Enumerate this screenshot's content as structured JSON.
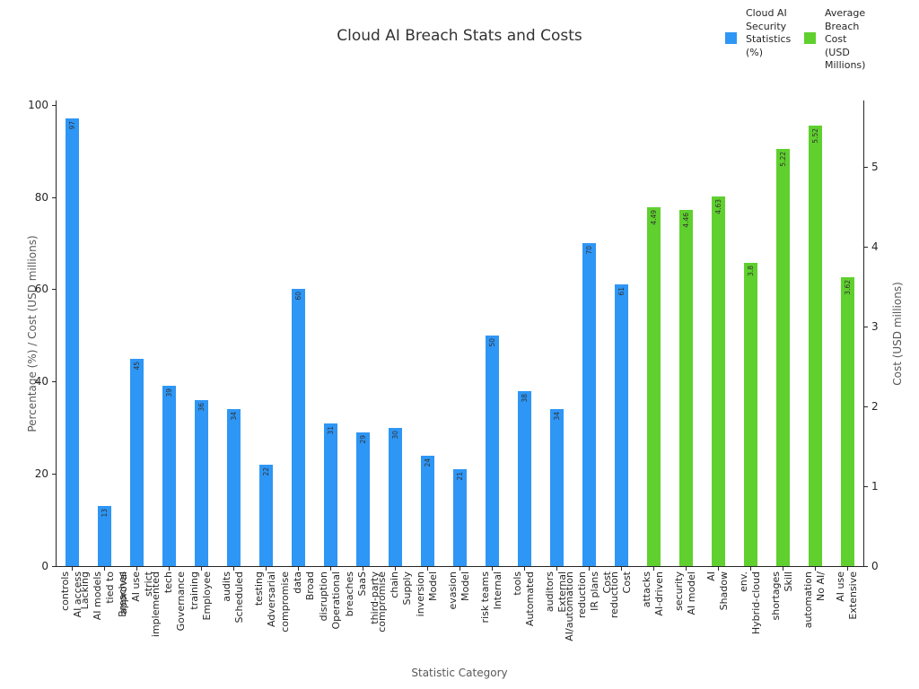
{
  "title": "Cloud AI Breach Stats and Costs",
  "x_axis_label": "Statistic Category",
  "y_axis_left_label": "Percentage (%) / Cost (USD millions)",
  "y_axis_right_label": "Cost (USD millions)",
  "legend": {
    "items": [
      {
        "label": "Cloud AI\nSecurity\nStatistics\n(%)",
        "color": "#2E96F5"
      },
      {
        "label": "Average\nBreach\nCost\n(USD\nMillions)",
        "color": "#5FD02E"
      }
    ]
  },
  "chart_data": {
    "type": "bar",
    "title": "Cloud AI Breach Stats and Costs",
    "xlabel": "Statistic Category",
    "ylabel_left": "Percentage (%) / Cost (USD millions)",
    "ylabel_right": "Cost (USD millions)",
    "grid": false,
    "legend_position": "top-right",
    "left_axis": {
      "ticks": [
        0,
        20,
        40,
        60,
        80,
        100
      ],
      "range": [
        0,
        100.9
      ]
    },
    "right_axis": {
      "ticks": [
        0,
        1,
        2,
        3,
        4,
        5
      ],
      "range": [
        0,
        5.83
      ]
    },
    "categories": [
      "AI access controls",
      "Breaches tied to AI models Lacking",
      "strict AI use approval",
      "Governance tech implemented",
      "Employee training",
      "Scheduled audits",
      "Adversarial testing",
      "Broad data compromise",
      "Operational disruption",
      "third-party SaaS breaches",
      "Supply chain compromise",
      "Model inversion",
      "Model evasion",
      "Internal risk teams",
      "Automated tools",
      "External auditors",
      "Cost IR plans reduction AI/automation",
      "Cost reduction",
      "AI-driven attacks",
      "AI model security",
      "Shadow AI",
      "Hybrid-cloud env.",
      "Skill shortages",
      "No AI/ automation",
      "Extensive AI use"
    ],
    "category_lines": [
      [
        "AI access",
        "controls"
      ],
      [
        "Breaches",
        "tied to",
        "AI models",
        "Lacking"
      ],
      [
        "strict",
        "AI use",
        "approval"
      ],
      [
        "Governance",
        "tech",
        "implemented"
      ],
      [
        "Employee",
        "training"
      ],
      [
        "Scheduled",
        "audits"
      ],
      [
        "Adversarial",
        "testing"
      ],
      [
        "Broad",
        "data",
        "compromise"
      ],
      [
        "Operational",
        "disruption"
      ],
      [
        "third-party",
        "SaaS",
        "breaches"
      ],
      [
        "Supply",
        "chain",
        "compromise"
      ],
      [
        "Model",
        "inversion"
      ],
      [
        "Model",
        "evasion"
      ],
      [
        "Internal",
        "risk teams"
      ],
      [
        "Automated",
        "tools"
      ],
      [
        "External",
        "auditors"
      ],
      [
        "Cost",
        "IR plans",
        "reduction",
        "AI/automation"
      ],
      [
        "Cost",
        "reduction"
      ],
      [
        "AI-driven",
        "attacks"
      ],
      [
        "AI model",
        "security"
      ],
      [
        "Shadow",
        "AI"
      ],
      [
        "Hybrid-cloud",
        "env."
      ],
      [
        "Skill",
        "shortages"
      ],
      [
        "No AI/",
        "automation"
      ],
      [
        "Extensive",
        "AI use"
      ]
    ],
    "series": [
      {
        "name": "Cloud AI Security Statistics (%)",
        "axis": "left",
        "color": "#2E96F5",
        "start_index": 0,
        "values": [
          97,
          13,
          45,
          39,
          36,
          34,
          22,
          60,
          31,
          29,
          30,
          24,
          21,
          50,
          38,
          34,
          70,
          61
        ],
        "value_labels": [
          "97",
          "13",
          "45",
          "39",
          "36",
          "34",
          "22",
          "60",
          "31",
          "29",
          "30",
          "24",
          "21",
          "50",
          "38",
          "34",
          "70",
          "61"
        ]
      },
      {
        "name": "Average Breach Cost (USD Millions)",
        "axis": "right",
        "color": "#5FD02E",
        "start_index": 18,
        "values": [
          4.49,
          4.46,
          4.63,
          3.8,
          5.22,
          5.52,
          3.62
        ],
        "value_labels": [
          "4.49",
          "4.46",
          "4.63",
          "3.8",
          "5.22",
          "5.52",
          "3.62"
        ]
      }
    ]
  }
}
